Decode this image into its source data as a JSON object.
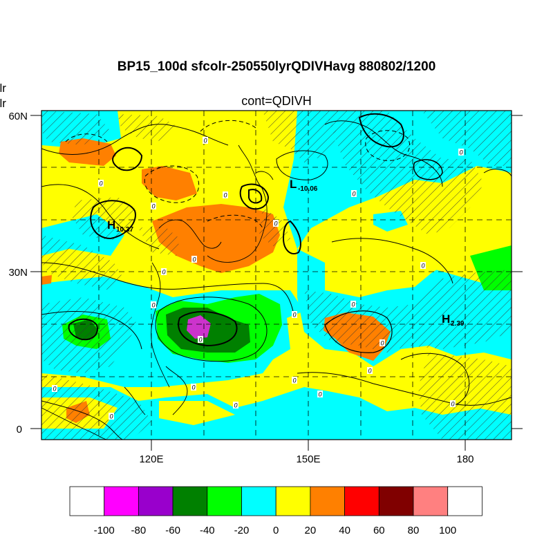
{
  "title": "BP15_100d sfcolr-250550lyrQDIVHavg  880802/1200",
  "subtitle": "cont=QDIVH",
  "left_labels": [
    "olr",
    "olr"
  ],
  "axes": {
    "lat_ticks": [
      {
        "value": 60,
        "label": "60N"
      },
      {
        "value": 30,
        "label": "30N"
      },
      {
        "value": 0,
        "label": "0"
      }
    ],
    "lon_ticks": [
      {
        "value": 120,
        "label": "120E"
      },
      {
        "value": 150,
        "label": "150E"
      },
      {
        "value": 180,
        "label": "180"
      }
    ],
    "lon_range": [
      99,
      189
    ],
    "lat_range": [
      -2,
      61
    ]
  },
  "pressure_centers": [
    {
      "letter": "L",
      "value": "-10.06"
    },
    {
      "letter": "H",
      "value": "10.37"
    },
    {
      "letter": "H",
      "value": "2.39"
    }
  ],
  "contour_zero_label": "0",
  "colorbar": {
    "labels": [
      "-100",
      "-80",
      "-60",
      "-40",
      "-20",
      "0",
      "20",
      "40",
      "60",
      "80",
      "100"
    ],
    "colors": [
      "#ffffff",
      "#ff00ff",
      "#9900cc",
      "#008000",
      "#00ff00",
      "#00ffff",
      "#ffff00",
      "#ff8000",
      "#ff0000",
      "#800000",
      "#ff8080",
      "#ffffff"
    ]
  }
}
